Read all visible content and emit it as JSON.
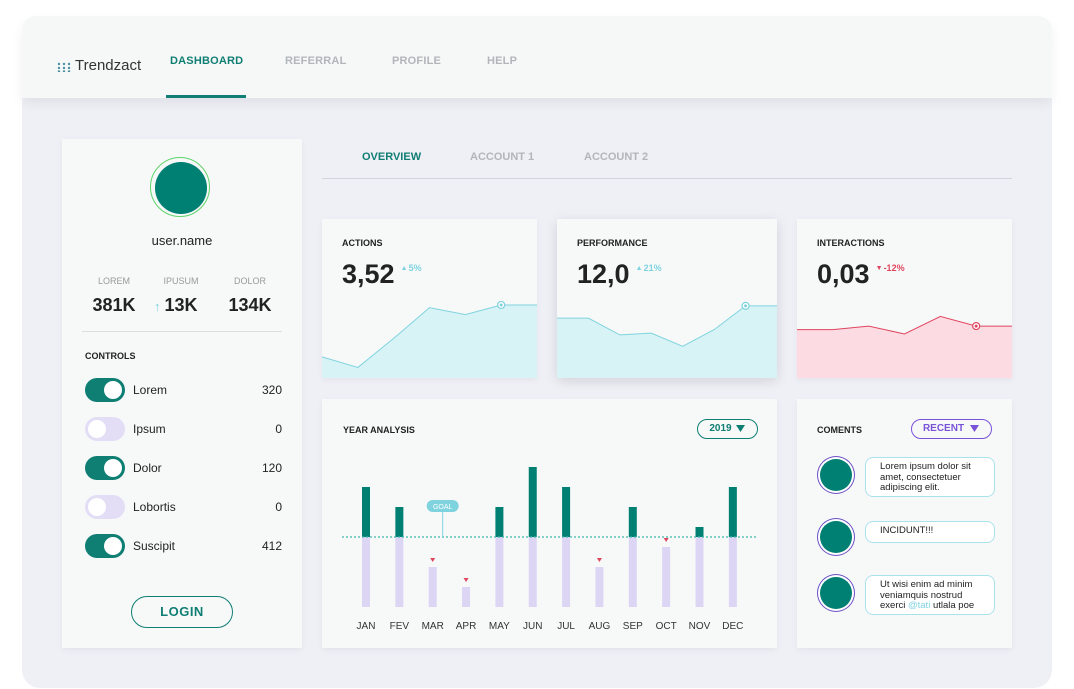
{
  "nav": {
    "brand": "Trendzact",
    "items": [
      "DASHBOARD",
      "REFERRAL",
      "PROFILE",
      "HELP"
    ],
    "active": 0
  },
  "profile": {
    "username": "user.name",
    "stats": [
      {
        "label": "LOREM",
        "value": "381K"
      },
      {
        "label": "IPUSUM",
        "value": "13K",
        "trend": "up"
      },
      {
        "label": "DOLOR",
        "value": "134K"
      }
    ],
    "controls_title": "CONTROLS",
    "controls": [
      {
        "label": "Lorem",
        "value": 320,
        "on": true
      },
      {
        "label": "Ipsum",
        "value": 0,
        "on": false
      },
      {
        "label": "Dolor",
        "value": 120,
        "on": true
      },
      {
        "label": "Lobortis",
        "value": 0,
        "on": false
      },
      {
        "label": "Suscipit",
        "value": 412,
        "on": true
      }
    ],
    "login": "LOGIN"
  },
  "tabs": {
    "items": [
      "OVERVIEW",
      "ACCOUNT 1",
      "ACCOUNT 2"
    ],
    "active": 0
  },
  "kpis": [
    {
      "title": "ACTIONS",
      "value": "3,52",
      "change": "5%",
      "trend": "up",
      "color": "#7fd3df",
      "fill": "#d8f3f6",
      "ylim": [
        0,
        100
      ],
      "values": [
        24,
        12,
        45,
        80,
        72,
        83,
        83
      ]
    },
    {
      "title": "PERFORMANCE",
      "value": "12,0",
      "change": "21%",
      "trend": "up",
      "color": "#7fd3df",
      "fill": "#d8f3f6",
      "ylim": [
        0,
        100
      ],
      "values": [
        68,
        68,
        49,
        51,
        36,
        55,
        82,
        82
      ]
    },
    {
      "title": "INTERACTIONS",
      "value": "0,03",
      "change": "-12%",
      "trend": "down",
      "color": "#e0455f",
      "fill": "#fcdbe2",
      "ylim": [
        0,
        100
      ],
      "values": [
        55,
        55,
        59,
        50,
        70,
        59,
        59
      ]
    }
  ],
  "chart_data": {
    "type": "bar",
    "title": "YEAR ANALYSIS",
    "year": "2019",
    "goal_label": "GOAL",
    "goal": 70,
    "categories": [
      "JAN",
      "FEV",
      "MAR",
      "APR",
      "MAY",
      "JUN",
      "JUL",
      "AUG",
      "SEP",
      "OCT",
      "NOV",
      "DEC"
    ],
    "values": [
      120,
      100,
      40,
      20,
      100,
      140,
      120,
      40,
      100,
      60,
      80,
      120
    ],
    "ylim": [
      0,
      150
    ],
    "color": "#007f73",
    "below_color": "#dcd6f4"
  },
  "comments": {
    "title": "COMENTS",
    "filter": "RECENT",
    "items": [
      {
        "text": "Lorem ipsum dolor sit amet, consectetuer adipiscing elit."
      },
      {
        "text": "INCIDUNT!!!"
      },
      {
        "text": "Ut wisi enim ad minim veniamquis nostrud exerci",
        "mention": "@tati",
        "after": "utlala poe"
      }
    ]
  }
}
